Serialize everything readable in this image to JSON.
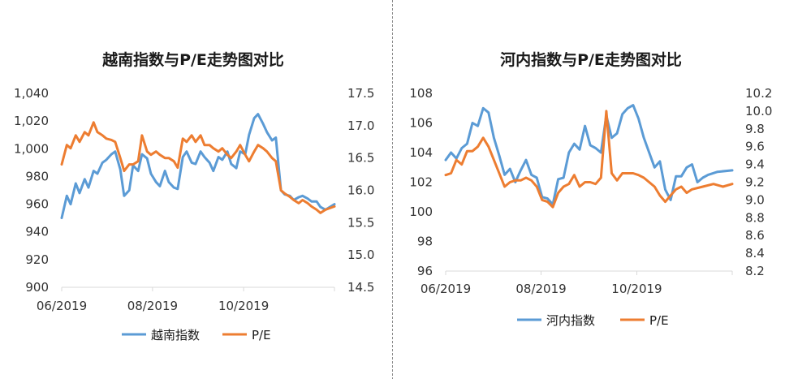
{
  "divider_color": "#8c8c8c",
  "chart_data": [
    {
      "type": "line",
      "title": "越南指数与P/E走势图对比",
      "legend_position": "bottom",
      "grid": false,
      "x_tick_labels": [
        "06/2019",
        "08/2019",
        "10/2019"
      ],
      "ylim_left": [
        900,
        1040
      ],
      "ylim_right": [
        14.5,
        17.5
      ],
      "y_ticks_left": [
        "1,040",
        "1,020",
        "1,000",
        "980",
        "960",
        "940",
        "920",
        "900"
      ],
      "y_ticks_right": [
        "17.5",
        "17.0",
        "16.5",
        "16.0",
        "15.5",
        "15.0",
        "14.5"
      ],
      "x_start_month": "2019-05-31",
      "x_end_month": "2019-12-31",
      "series": [
        {
          "name": "越南指数",
          "axis": "left",
          "color": "#5b9bd5",
          "values": [
            950,
            966,
            960,
            975,
            968,
            978,
            972,
            984,
            982,
            990,
            992,
            996,
            998,
            985,
            966,
            970,
            988,
            984,
            996,
            993,
            982,
            976,
            973,
            984,
            976,
            972,
            971,
            994,
            998,
            990,
            989,
            998,
            994,
            990,
            984,
            994,
            992,
            998,
            989,
            986,
            998,
            996,
            1010,
            1022,
            1025,
            1018,
            1012,
            1006,
            1008,
            970,
            967,
            966,
            963,
            965,
            966,
            964,
            962,
            962,
            958,
            956,
            960
          ],
          "x": [
            "2019-05-31",
            "2019-06-04",
            "2019-06-07",
            "2019-06-11",
            "2019-06-14",
            "2019-06-18",
            "2019-06-21",
            "2019-06-25",
            "2019-06-28",
            "2019-07-02",
            "2019-07-05",
            "2019-07-09",
            "2019-07-12",
            "2019-07-16",
            "2019-07-19",
            "2019-07-23",
            "2019-07-26",
            "2019-07-30",
            "2019-08-02",
            "2019-08-06",
            "2019-08-09",
            "2019-08-13",
            "2019-08-16",
            "2019-08-20",
            "2019-08-23",
            "2019-08-27",
            "2019-08-30",
            "2019-09-03",
            "2019-09-06",
            "2019-09-10",
            "2019-09-13",
            "2019-09-17",
            "2019-09-20",
            "2019-09-24",
            "2019-09-27",
            "2019-10-01",
            "2019-10-04",
            "2019-10-08",
            "2019-10-11",
            "2019-10-15",
            "2019-10-18",
            "2019-10-22",
            "2019-10-25",
            "2019-10-29",
            "2019-11-01",
            "2019-11-05",
            "2019-11-08",
            "2019-11-12",
            "2019-11-15",
            "2019-11-19",
            "2019-11-22",
            "2019-11-26",
            "2019-11-29",
            "2019-12-03",
            "2019-12-06",
            "2019-12-10",
            "2019-12-13",
            "2019-12-17",
            "2019-12-20",
            "2019-12-24",
            "2019-12-31"
          ]
        },
        {
          "name": "P/E",
          "axis": "right",
          "color": "#ed7d31",
          "values": [
            16.4,
            16.7,
            16.65,
            16.85,
            16.75,
            16.9,
            16.85,
            17.05,
            16.9,
            16.85,
            16.8,
            16.78,
            16.75,
            16.5,
            16.3,
            16.4,
            16.4,
            16.45,
            16.85,
            16.6,
            16.55,
            16.6,
            16.55,
            16.5,
            16.5,
            16.45,
            16.35,
            16.8,
            16.75,
            16.85,
            16.75,
            16.85,
            16.7,
            16.7,
            16.65,
            16.6,
            16.65,
            16.55,
            16.5,
            16.6,
            16.7,
            16.55,
            16.45,
            16.6,
            16.7,
            16.65,
            16.6,
            16.5,
            16.45,
            16.0,
            15.95,
            15.9,
            15.85,
            15.8,
            15.85,
            15.8,
            15.75,
            15.7,
            15.65,
            15.7,
            15.75
          ],
          "x": [
            "2019-05-31",
            "2019-06-04",
            "2019-06-07",
            "2019-06-11",
            "2019-06-14",
            "2019-06-18",
            "2019-06-21",
            "2019-06-25",
            "2019-06-28",
            "2019-07-02",
            "2019-07-05",
            "2019-07-09",
            "2019-07-12",
            "2019-07-16",
            "2019-07-19",
            "2019-07-23",
            "2019-07-26",
            "2019-07-30",
            "2019-08-02",
            "2019-08-06",
            "2019-08-09",
            "2019-08-13",
            "2019-08-16",
            "2019-08-20",
            "2019-08-23",
            "2019-08-27",
            "2019-08-30",
            "2019-09-03",
            "2019-09-06",
            "2019-09-10",
            "2019-09-13",
            "2019-09-17",
            "2019-09-20",
            "2019-09-24",
            "2019-09-27",
            "2019-10-01",
            "2019-10-04",
            "2019-10-08",
            "2019-10-11",
            "2019-10-15",
            "2019-10-18",
            "2019-10-22",
            "2019-10-25",
            "2019-10-29",
            "2019-11-01",
            "2019-11-05",
            "2019-11-08",
            "2019-11-12",
            "2019-11-15",
            "2019-11-19",
            "2019-11-22",
            "2019-11-26",
            "2019-11-29",
            "2019-12-03",
            "2019-12-06",
            "2019-12-10",
            "2019-12-13",
            "2019-12-17",
            "2019-12-20",
            "2019-12-24",
            "2019-12-31"
          ]
        }
      ]
    },
    {
      "type": "line",
      "title": "河内指数与P/E走势图对比",
      "legend_position": "bottom",
      "grid": false,
      "x_tick_labels": [
        "06/2019",
        "08/2019",
        "10/2019"
      ],
      "ylim_left": [
        96,
        108
      ],
      "ylim_right": [
        8.2,
        10.2
      ],
      "y_ticks_left": [
        "108",
        "106",
        "104",
        "102",
        "100",
        "98",
        "96"
      ],
      "y_ticks_right": [
        "10.2",
        "10.0",
        "9.8",
        "9.6",
        "9.4",
        "9.2",
        "9.0",
        "8.8",
        "8.6",
        "8.4",
        "8.2"
      ],
      "x_start_month": "2019-05-31",
      "x_end_month": "2019-12-31",
      "series": [
        {
          "name": "河内指数",
          "axis": "left",
          "color": "#5b9bd5",
          "values": [
            103.5,
            104.0,
            103.6,
            104.3,
            104.6,
            106.0,
            105.8,
            107.0,
            106.7,
            105.0,
            103.8,
            102.5,
            102.9,
            102.0,
            102.8,
            103.5,
            102.5,
            102.3,
            101.0,
            100.9,
            100.5,
            102.2,
            102.3,
            104.0,
            104.6,
            104.2,
            105.8,
            104.5,
            104.3,
            104.0,
            106.5,
            105.0,
            105.3,
            106.6,
            107.0,
            107.2,
            106.3,
            105.0,
            104.0,
            103.0,
            103.4,
            101.5,
            100.8,
            102.4,
            102.4,
            103.0,
            103.2,
            102.0,
            102.3,
            102.5,
            102.7,
            102.8
          ],
          "x": [
            "2019-05-31",
            "2019-06-04",
            "2019-06-08",
            "2019-06-12",
            "2019-06-16",
            "2019-06-20",
            "2019-06-24",
            "2019-06-28",
            "2019-07-02",
            "2019-07-06",
            "2019-07-10",
            "2019-07-14",
            "2019-07-18",
            "2019-07-22",
            "2019-07-26",
            "2019-07-30",
            "2019-08-03",
            "2019-08-07",
            "2019-08-11",
            "2019-08-15",
            "2019-08-19",
            "2019-08-23",
            "2019-08-27",
            "2019-08-31",
            "2019-09-04",
            "2019-09-08",
            "2019-09-12",
            "2019-09-16",
            "2019-09-20",
            "2019-09-24",
            "2019-09-28",
            "2019-10-02",
            "2019-10-06",
            "2019-10-10",
            "2019-10-14",
            "2019-10-18",
            "2019-10-22",
            "2019-10-26",
            "2019-10-30",
            "2019-11-03",
            "2019-11-07",
            "2019-11-11",
            "2019-11-15",
            "2019-11-19",
            "2019-11-23",
            "2019-11-27",
            "2019-12-01",
            "2019-12-05",
            "2019-12-09",
            "2019-12-13",
            "2019-12-20",
            "2019-12-31"
          ]
        },
        {
          "name": "P/E",
          "axis": "right",
          "color": "#ed7d31",
          "values": [
            9.28,
            9.3,
            9.45,
            9.4,
            9.55,
            9.55,
            9.6,
            9.7,
            9.6,
            9.45,
            9.3,
            9.15,
            9.2,
            9.22,
            9.22,
            9.25,
            9.22,
            9.15,
            9.0,
            8.98,
            8.92,
            9.08,
            9.15,
            9.18,
            9.28,
            9.15,
            9.2,
            9.2,
            9.18,
            9.25,
            10.0,
            9.3,
            9.22,
            9.3,
            9.3,
            9.3,
            9.28,
            9.25,
            9.2,
            9.15,
            9.05,
            8.98,
            9.05,
            9.12,
            9.15,
            9.08,
            9.12,
            9.15,
            9.18,
            9.15,
            9.18
          ],
          "x": [
            "2019-05-31",
            "2019-06-04",
            "2019-06-08",
            "2019-06-12",
            "2019-06-16",
            "2019-06-20",
            "2019-06-24",
            "2019-06-28",
            "2019-07-02",
            "2019-07-06",
            "2019-07-10",
            "2019-07-14",
            "2019-07-18",
            "2019-07-22",
            "2019-07-26",
            "2019-07-30",
            "2019-08-03",
            "2019-08-07",
            "2019-08-11",
            "2019-08-15",
            "2019-08-19",
            "2019-08-23",
            "2019-08-27",
            "2019-08-31",
            "2019-09-04",
            "2019-09-08",
            "2019-09-12",
            "2019-09-16",
            "2019-09-20",
            "2019-09-24",
            "2019-09-28",
            "2019-10-02",
            "2019-10-06",
            "2019-10-10",
            "2019-10-14",
            "2019-10-18",
            "2019-10-22",
            "2019-10-26",
            "2019-10-30",
            "2019-11-03",
            "2019-11-07",
            "2019-11-11",
            "2019-11-15",
            "2019-11-19",
            "2019-11-23",
            "2019-11-27",
            "2019-12-01",
            "2019-12-09",
            "2019-12-17",
            "2019-12-24",
            "2019-12-31"
          ]
        }
      ]
    }
  ]
}
